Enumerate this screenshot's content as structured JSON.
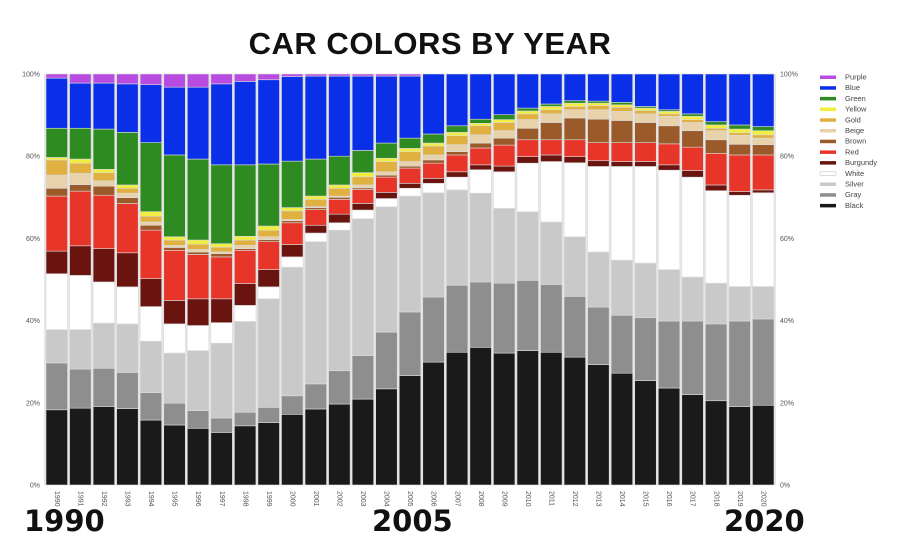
{
  "chart_data": {
    "type": "bar",
    "stacked": true,
    "title": "CAR COLORS BY YEAR",
    "xlabel": "",
    "ylabel": "",
    "ylim": [
      0,
      100
    ],
    "y_ticks": [
      "0%",
      "20%",
      "40%",
      "60%",
      "80%",
      "100%"
    ],
    "grid": false,
    "legend_placement": "right",
    "annotations": [
      "1990",
      "2005",
      "2020"
    ],
    "categories": [
      "1990",
      "1991",
      "1992",
      "1993",
      "1994",
      "1995",
      "1996",
      "1997",
      "1998",
      "1999",
      "2000",
      "2001",
      "2002",
      "2003",
      "2004",
      "2005",
      "2006",
      "2007",
      "2008",
      "2009",
      "2010",
      "2011",
      "2012",
      "2013",
      "2014",
      "2015",
      "2016",
      "2017",
      "2018",
      "2019",
      "2020"
    ],
    "series": [
      {
        "name": "Black",
        "color": "#1a1a1a",
        "values": [
          18.3,
          18.7,
          19.1,
          18.6,
          15.8,
          14.6,
          13.8,
          12.8,
          14.4,
          15.2,
          17.2,
          18.5,
          19.7,
          20.9,
          23.4,
          26.6,
          29.9,
          32.3,
          33.5,
          32.1,
          32.7,
          32.3,
          31.1,
          29.3,
          27.2,
          25.4,
          23.6,
          22.0,
          20.5,
          19.1,
          19.4
        ]
      },
      {
        "name": "Gray",
        "color": "#8e8e8e",
        "values": [
          11.4,
          9.5,
          9.3,
          8.8,
          6.7,
          5.3,
          4.3,
          3.5,
          3.3,
          3.7,
          4.5,
          6.1,
          8.1,
          10.6,
          13.8,
          15.5,
          15.8,
          16.3,
          15.9,
          17.0,
          17.1,
          16.5,
          14.8,
          14.0,
          14.1,
          15.3,
          16.3,
          17.9,
          18.7,
          20.8,
          21.0
        ]
      },
      {
        "name": "Silver",
        "color": "#c9c9c9",
        "values": [
          8.1,
          9.6,
          11.0,
          11.8,
          12.5,
          12.2,
          14.6,
          18.2,
          22.1,
          26.4,
          31.3,
          34.6,
          34.2,
          33.3,
          30.5,
          28.2,
          25.4,
          23.2,
          21.6,
          18.2,
          16.7,
          15.2,
          14.5,
          13.4,
          13.4,
          13.3,
          12.5,
          10.7,
          9.9,
          8.4,
          7.9
        ]
      },
      {
        "name": "White",
        "color": "#ffffff",
        "values": [
          13.6,
          13.2,
          10.0,
          9.0,
          8.4,
          7.1,
          6.1,
          5.0,
          3.9,
          2.9,
          2.5,
          2.1,
          1.8,
          2.1,
          2.0,
          1.9,
          2.3,
          3.1,
          5.7,
          8.9,
          11.8,
          14.7,
          18.0,
          20.8,
          22.8,
          23.5,
          24.2,
          24.3,
          22.5,
          22.2,
          22.8
        ]
      },
      {
        "name": "Burgundy",
        "color": "#6a1410",
        "values": [
          5.5,
          7.2,
          8.1,
          8.3,
          6.8,
          5.7,
          6.5,
          5.8,
          5.3,
          4.2,
          3.0,
          1.9,
          2.1,
          1.6,
          1.5,
          1.2,
          1.2,
          1.3,
          1.2,
          1.4,
          1.6,
          1.6,
          1.5,
          1.4,
          1.2,
          1.2,
          1.3,
          1.6,
          1.4,
          0.9,
          0.7
        ]
      },
      {
        "name": "Red",
        "color": "#e8352a",
        "values": [
          13.4,
          13.3,
          13.0,
          12.0,
          11.8,
          12.2,
          10.8,
          10.2,
          8.1,
          6.8,
          5.3,
          3.8,
          3.6,
          3.4,
          3.7,
          3.7,
          3.7,
          4.1,
          4.1,
          5.1,
          4.1,
          3.7,
          4.1,
          4.4,
          4.6,
          4.6,
          5.1,
          5.7,
          7.7,
          8.9,
          8.5
        ]
      },
      {
        "name": "Brown",
        "color": "#9a5a2a",
        "values": [
          1.9,
          1.6,
          2.2,
          1.4,
          1.2,
          0.7,
          0.6,
          0.8,
          0.4,
          0.5,
          0.5,
          0.5,
          0.5,
          0.4,
          0.5,
          0.5,
          0.8,
          0.8,
          1.2,
          1.7,
          2.8,
          4.2,
          5.3,
          5.7,
          5.4,
          4.9,
          4.4,
          4.0,
          3.3,
          2.6,
          2.5
        ]
      },
      {
        "name": "Beige",
        "color": "#e8d2ac",
        "values": [
          3.2,
          2.7,
          1.3,
          1.1,
          0.8,
          0.5,
          0.6,
          0.4,
          0.8,
          0.7,
          0.3,
          0.2,
          0.3,
          0.7,
          0.8,
          1.1,
          1.2,
          1.7,
          2.0,
          1.8,
          2.1,
          2.1,
          2.0,
          2.3,
          2.2,
          2.1,
          2.3,
          2.0,
          2.2,
          2.2,
          1.6
        ]
      },
      {
        "name": "Gold",
        "color": "#e0b040",
        "values": [
          3.7,
          2.5,
          2.0,
          1.2,
          1.4,
          1.3,
          1.3,
          1.2,
          1.3,
          1.6,
          2.1,
          1.8,
          1.9,
          2.0,
          2.5,
          2.4,
          2.2,
          2.2,
          2.2,
          2.0,
          1.4,
          1.0,
          0.8,
          1.0,
          1.0,
          0.8,
          0.6,
          0.7,
          0.6,
          0.6,
          0.8
        ]
      },
      {
        "name": "Yellow",
        "color": "#f2ee3c",
        "values": [
          0.6,
          1.0,
          0.8,
          0.8,
          1.1,
          0.8,
          1.0,
          0.8,
          0.9,
          1.0,
          0.8,
          0.8,
          0.8,
          1.0,
          0.8,
          0.8,
          0.7,
          0.8,
          0.6,
          0.7,
          0.7,
          0.8,
          0.8,
          0.6,
          0.6,
          0.6,
          0.6,
          0.8,
          0.8,
          0.9,
          1.0
        ]
      },
      {
        "name": "Green",
        "color": "#2e8b22",
        "values": [
          7.1,
          7.5,
          9.8,
          12.8,
          16.8,
          19.9,
          19.7,
          19.2,
          17.4,
          15.1,
          11.3,
          9.0,
          7.0,
          5.4,
          3.7,
          2.5,
          2.2,
          1.6,
          1.0,
          1.2,
          0.7,
          0.6,
          0.6,
          0.5,
          0.6,
          0.4,
          0.4,
          0.6,
          0.8,
          1.0,
          1.0
        ]
      },
      {
        "name": "Blue",
        "color": "#0a2fe8",
        "values": [
          12.2,
          11.0,
          11.2,
          11.8,
          14.1,
          16.5,
          17.5,
          19.7,
          20.3,
          20.5,
          20.6,
          20.2,
          19.5,
          18.1,
          16.3,
          15.1,
          14.6,
          12.6,
          11.0,
          9.9,
          8.3,
          7.3,
          6.5,
          6.6,
          6.9,
          7.9,
          8.7,
          9.7,
          11.6,
          12.4,
          12.8
        ]
      },
      {
        "name": "Purple",
        "color": "#b84be0",
        "values": [
          1.0,
          2.2,
          2.2,
          2.4,
          2.6,
          3.2,
          3.2,
          2.4,
          1.8,
          1.4,
          0.6,
          0.5,
          0.5,
          0.5,
          0.5,
          0.5,
          0,
          0,
          0,
          0,
          0,
          0,
          0,
          0,
          0,
          0,
          0,
          0,
          0,
          0,
          0
        ]
      }
    ]
  }
}
